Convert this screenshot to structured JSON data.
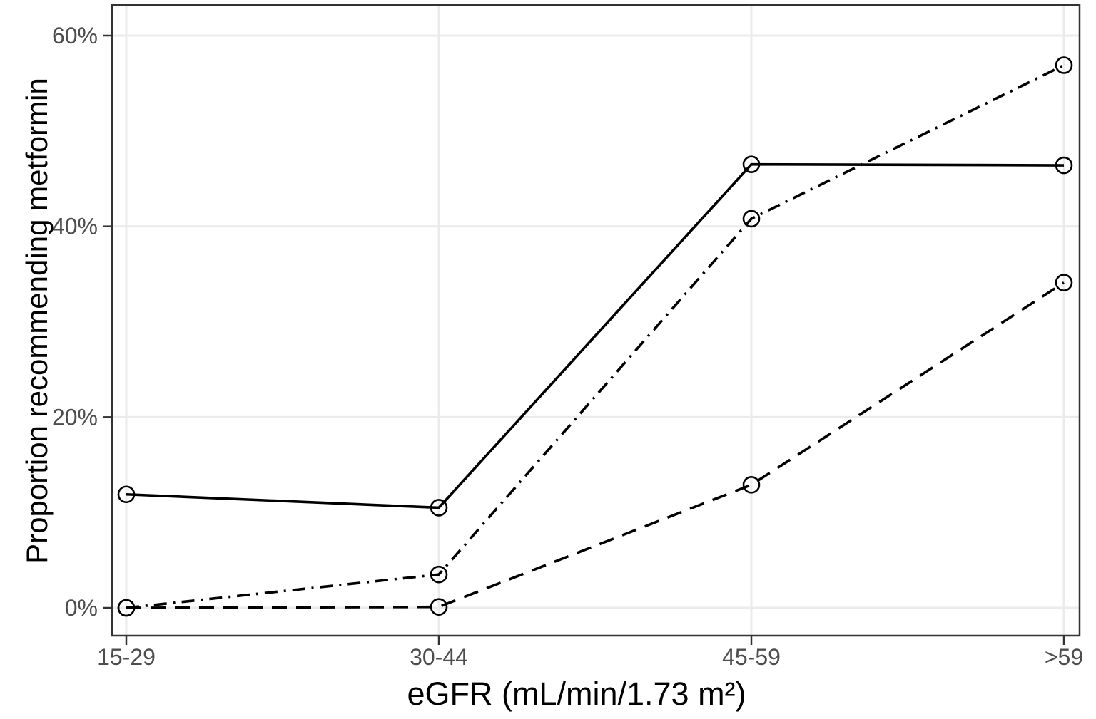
{
  "chart_data": {
    "type": "line",
    "title": "",
    "xlabel": "eGFR (mL/min/1.73 m²)",
    "ylabel": "Proportion recommending metformin",
    "categories": [
      "15-29",
      "30-44",
      "45-59",
      ">59"
    ],
    "series": [
      {
        "name": "Solid line",
        "line_style": "solid",
        "marker": "open-circle",
        "color": "#000000",
        "values_pct": [
          11.9,
          10.5,
          46.5,
          46.4
        ]
      },
      {
        "name": "Dash-dot line",
        "line_style": "dashdot",
        "marker": "open-circle",
        "color": "#000000",
        "values_pct": [
          0,
          3.5,
          40.8,
          56.9
        ]
      },
      {
        "name": "Dashed line",
        "line_style": "dashed",
        "marker": "open-circle",
        "color": "#000000",
        "values_pct": [
          0,
          0.1,
          12.9,
          34.1
        ]
      }
    ],
    "y_ticks": [
      {
        "value": 0,
        "label": "0%"
      },
      {
        "value": 20,
        "label": "20%"
      },
      {
        "value": 40,
        "label": "40%"
      },
      {
        "value": 60,
        "label": "60%"
      }
    ],
    "ylim": [
      -2.9,
      63.2
    ],
    "grid": "major-only",
    "legend": "none",
    "colors": {
      "background": "#ffffff",
      "grid": "#ebebeb",
      "panel_border": "#333333",
      "tick": "#333333",
      "tick_label": "#4d4d4d",
      "series": "#000000"
    }
  }
}
